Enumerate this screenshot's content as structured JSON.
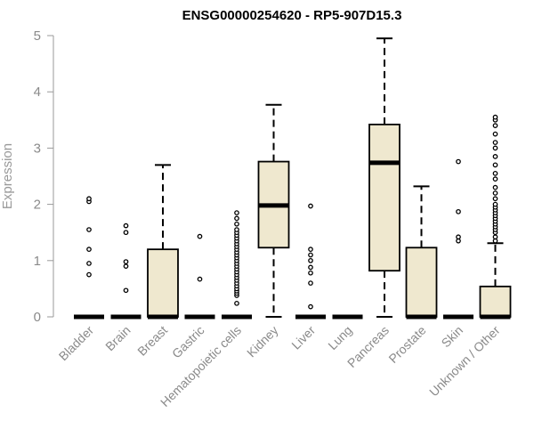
{
  "chart_data": {
    "type": "box",
    "title": "ENSG00000254620 - RP5-907D15.3",
    "ylabel": "Expression",
    "ylim": [
      0,
      5
    ],
    "yticks": [
      "0",
      "1",
      "2",
      "3",
      "4",
      "5"
    ],
    "box_fill": "#efe8cf",
    "box_stroke": "#000000",
    "axis_color": "#999999",
    "categories": [
      "Bladder",
      "Brain",
      "Breast",
      "Gastric",
      "Hematopoietic cells",
      "Kidney",
      "Liver",
      "Lung",
      "Pancreas",
      "Prostate",
      "Skin",
      "Unknown / Other"
    ],
    "boxes": [
      {
        "q1": 0,
        "median": 0,
        "q3": 0,
        "whisker_low": 0,
        "whisker_high": 0,
        "outliers": [
          0.75,
          0.95,
          1.2,
          1.55,
          2.05,
          2.1
        ]
      },
      {
        "q1": 0,
        "median": 0,
        "q3": 0,
        "whisker_low": 0,
        "whisker_high": 0,
        "outliers": [
          0.47,
          0.9,
          0.98,
          1.5,
          1.62
        ]
      },
      {
        "q1": 0,
        "median": 0,
        "q3": 1.2,
        "whisker_low": 0,
        "whisker_high": 2.7,
        "outliers": []
      },
      {
        "q1": 0,
        "median": 0,
        "q3": 0,
        "whisker_low": 0,
        "whisker_high": 0,
        "outliers": [
          0.67,
          1.43
        ]
      },
      {
        "q1": 0,
        "median": 0,
        "q3": 0,
        "whisker_low": 0,
        "whisker_high": 0,
        "outliers": [
          0.24,
          0.38,
          0.42,
          0.46,
          0.5,
          0.55,
          0.6,
          0.65,
          0.7,
          0.75,
          0.8,
          0.85,
          0.9,
          0.95,
          1.0,
          1.05,
          1.1,
          1.15,
          1.2,
          1.25,
          1.3,
          1.35,
          1.4,
          1.45,
          1.5,
          1.55,
          1.65,
          1.75,
          1.85
        ]
      },
      {
        "q1": 1.23,
        "median": 1.98,
        "q3": 2.76,
        "whisker_low": 0,
        "whisker_high": 3.77,
        "outliers": []
      },
      {
        "q1": 0,
        "median": 0,
        "q3": 0,
        "whisker_low": 0,
        "whisker_high": 0,
        "outliers": [
          0.18,
          0.6,
          0.78,
          0.88,
          1.0,
          1.1,
          1.2,
          1.97
        ]
      },
      {
        "q1": 0,
        "median": 0,
        "q3": 0,
        "whisker_low": 0,
        "whisker_high": 0,
        "outliers": []
      },
      {
        "q1": 0.82,
        "median": 2.74,
        "q3": 3.42,
        "whisker_low": 0,
        "whisker_high": 4.95,
        "outliers": []
      },
      {
        "q1": 0,
        "median": 0,
        "q3": 1.23,
        "whisker_low": 0,
        "whisker_high": 2.32,
        "outliers": []
      },
      {
        "q1": 0,
        "median": 0,
        "q3": 0,
        "whisker_low": 0,
        "whisker_high": 0,
        "outliers": [
          1.35,
          1.42,
          1.87,
          2.76
        ]
      },
      {
        "q1": 0,
        "median": 0,
        "q3": 0.54,
        "whisker_low": 0,
        "whisker_high": 1.31,
        "outliers": [
          1.35,
          1.42,
          1.5,
          1.55,
          1.6,
          1.65,
          1.7,
          1.75,
          1.8,
          1.85,
          1.9,
          1.95,
          2.0,
          2.1,
          2.2,
          2.3,
          2.45,
          2.55,
          2.7,
          2.85,
          3.0,
          3.1,
          3.25,
          3.4,
          3.5,
          3.55
        ]
      }
    ]
  }
}
